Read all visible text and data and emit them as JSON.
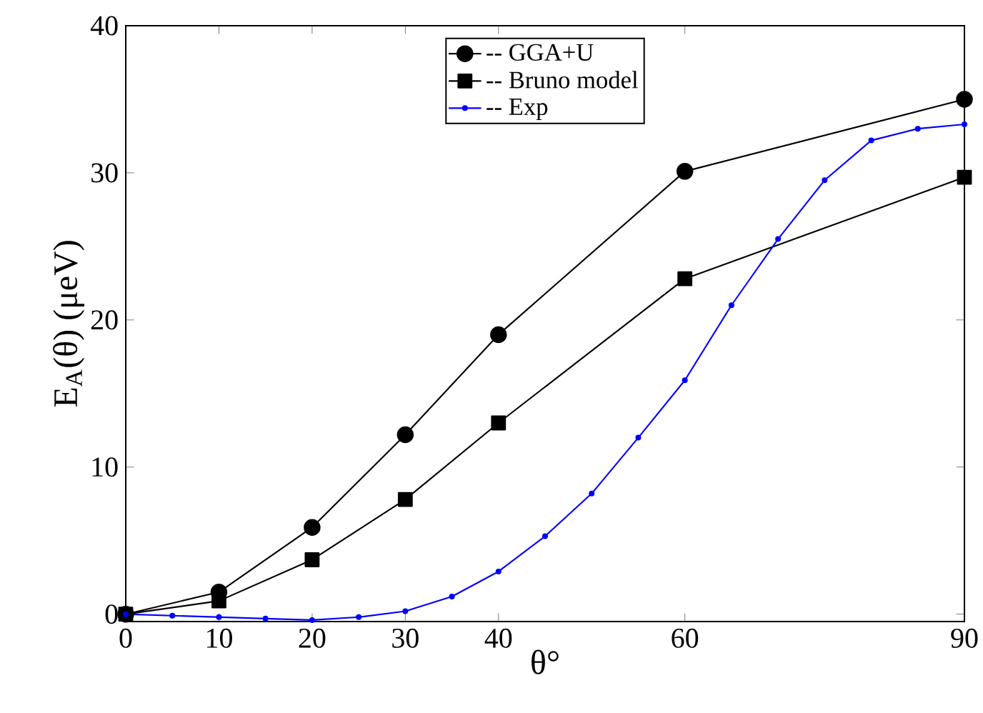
{
  "chart_data": {
    "type": "line",
    "xlabel": "θ°",
    "ylabel": "E$_{A}$(θ) (μeV)",
    "x": [
      0,
      10,
      20,
      30,
      40,
      60,
      90
    ],
    "series": [
      {
        "name": "-- GGA+U",
        "color": "#000000",
        "marker": "circle",
        "values": [
          0,
          1.5,
          5.9,
          12.2,
          19,
          30.1,
          35
        ]
      },
      {
        "name": "-- Bruno model",
        "color": "#000000",
        "marker": "square",
        "values": [
          0,
          0.9,
          3.7,
          7.8,
          13,
          22.8,
          29.7
        ]
      },
      {
        "name": "-- Exp",
        "color": "#0000ff",
        "marker": "circle",
        "x": [
          0,
          5,
          10,
          15,
          20,
          25,
          30,
          35,
          40,
          45,
          50,
          55,
          60,
          65,
          70,
          75,
          80,
          85,
          90
        ],
        "values": [
          0,
          -0.1,
          -0.2,
          -0.3,
          -0.4,
          -0.2,
          0.2,
          1.2,
          2.9,
          5.3,
          8.2,
          12,
          15.9,
          21,
          25.5,
          29.5,
          32.2,
          33,
          33.3
        ]
      }
    ],
    "xlim": [
      0,
      90
    ],
    "ylim": [
      -0.5,
      40
    ],
    "xticks": [
      0,
      10,
      20,
      30,
      40,
      60,
      90
    ],
    "yticks": [
      0,
      10,
      20,
      30,
      40
    ],
    "grid": false,
    "legend": "top"
  }
}
